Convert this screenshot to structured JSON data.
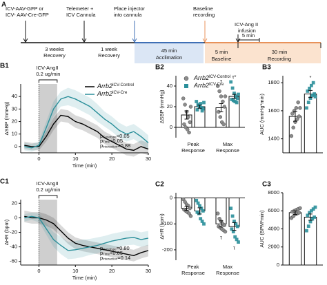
{
  "timeline": {
    "panel": "A",
    "labels": [
      [
        "ICV-AAV-GFP or",
        "ICV- AAV-Cre-GFP"
      ],
      [
        "Telemeter +",
        "ICV Cannula"
      ],
      [
        "Place injector",
        "into cannula"
      ],
      [
        "Baseline",
        "recording"
      ],
      [
        "ICV-Ang II",
        "infusion"
      ]
    ],
    "periods": [
      [
        "3 weeks",
        "Recovery"
      ],
      [
        "1 week",
        "Recovery"
      ],
      [
        "45 min",
        "Acclimation"
      ],
      [
        "5 min",
        "Baseline"
      ],
      [
        "30 min",
        "Recording"
      ]
    ],
    "infusion_period": "5 min"
  },
  "chart_data": [
    {
      "type": "line",
      "panel": "B1",
      "ylabel": "ΔSBP (mmHg)",
      "xlabel": "Time (min)",
      "legend": "upper right",
      "infusion_label": [
        "ICV-AngII",
        "0.2 ug/min"
      ],
      "shade": [
        0,
        5
      ],
      "xlim": [
        -5,
        30
      ],
      "xticks": [
        0,
        10,
        20,
        30
      ],
      "ylim": [
        -5,
        50
      ],
      "yticks": [
        0,
        10,
        20,
        30,
        40
      ],
      "x": [
        -4,
        -2,
        0,
        2,
        4,
        6,
        8,
        10,
        12,
        14,
        16,
        18,
        20,
        22,
        24,
        26,
        28,
        30
      ],
      "series": [
        {
          "name": "Arrb2",
          "name_sup": "ICV-Control",
          "color": "#000000",
          "values": [
            1,
            0,
            0,
            8,
            18,
            25,
            24,
            20,
            18,
            15,
            12,
            7,
            4,
            1,
            -2,
            -3,
            0,
            -2
          ],
          "errors": [
            3,
            3,
            3,
            4,
            5,
            5,
            5,
            5,
            5,
            5,
            5,
            5,
            5,
            5,
            5,
            5,
            5,
            5
          ]
        },
        {
          "name": "Arrb2",
          "name_sup": "ICV-Cre",
          "color": "#2a8f9a",
          "values": [
            0,
            -1,
            1,
            15,
            30,
            38,
            40,
            38,
            35,
            32,
            27,
            22,
            18,
            13,
            10,
            12,
            8,
            3
          ],
          "errors": [
            3,
            3,
            3,
            5,
            6,
            6,
            7,
            7,
            7,
            7,
            7,
            6,
            6,
            6,
            6,
            6,
            6,
            6
          ]
        }
      ],
      "stats": [
        {
          "symbol": "p",
          "subscript": "Genotype",
          "text": "<0.05"
        },
        {
          "symbol": "p",
          "subscript": "Time",
          "text": "<0.05"
        },
        {
          "symbol": "p",
          "subscript": "Interaction",
          "text": "=0.88"
        }
      ]
    },
    {
      "type": "bar",
      "panel": "B2",
      "ylabel": "ΔSBP (mmHg)",
      "legend": "upper left",
      "categories": [
        [
          "Peak",
          "Response"
        ],
        [
          "Max",
          "Response"
        ]
      ],
      "ylim": [
        -10,
        50
      ],
      "yticks": [
        0,
        20,
        40
      ],
      "series": [
        {
          "name": "Arrb2",
          "name_sup": "ICV-Control",
          "color": "#8c8c8c",
          "marker": "circle",
          "values": [
            12,
            19
          ],
          "errors": [
            4,
            4
          ],
          "points": [
            [
              28,
              22,
              15,
              10,
              5,
              3,
              0,
              -2,
              -5,
              20
            ],
            [
              40,
              35,
              30,
              25,
              20,
              15,
              10,
              5,
              3,
              30
            ]
          ]
        },
        {
          "name": "Arrb2",
          "name_sup": "ICV-Cre",
          "color": "#2a8f9a",
          "marker": "square",
          "values": [
            20,
            30
          ],
          "errors": [
            1.5,
            2
          ],
          "points": [
            [
              25,
              22,
              20,
              19,
              18,
              17,
              21,
              23,
              16,
              24
            ],
            [
              44,
              38,
              33,
              30,
              28,
              27,
              26,
              25,
              24,
              32
            ]
          ]
        }
      ],
      "annotations": [
        {
          "series": 0,
          "category": 1,
          "text": "τ"
        },
        {
          "series": 1,
          "category": 1,
          "text": "τ*"
        }
      ]
    },
    {
      "type": "bar",
      "panel": "B3",
      "ylabel": "AUC (mmHg*min)",
      "ylim": [
        1300,
        1850
      ],
      "yticks": [
        1400,
        1600,
        1800
      ],
      "series": [
        {
          "color": "#8c8c8c",
          "marker": "circle",
          "values": [
            1560
          ],
          "errors": [
            35
          ],
          "points": [
            [
              1420,
              1480,
              1520,
              1540,
              1560,
              1580,
              1600,
              1620,
              1660,
              1620
            ]
          ]
        },
        {
          "color": "#2a8f9a",
          "marker": "square",
          "values": [
            1720
          ],
          "errors": [
            25
          ],
          "points": [
            [
              1620,
              1660,
              1690,
              1710,
              1720,
              1740,
              1760,
              1780,
              1800,
              1700
            ]
          ]
        }
      ],
      "annotations": [
        {
          "series": 1,
          "category": 0,
          "text": "*"
        }
      ]
    },
    {
      "type": "line",
      "panel": "C1",
      "ylabel": "ΔHR (bpm)",
      "xlabel": "Time (min)",
      "infusion_label": [
        "ICV-AngII",
        "0.2 ug/min"
      ],
      "shade": [
        0,
        5
      ],
      "xlim": [
        -5,
        30
      ],
      "xticks": [
        0,
        10,
        20,
        30
      ],
      "ylim": [
        -65,
        25
      ],
      "yticks": [
        -60,
        -40,
        -20,
        0,
        20
      ],
      "x": [
        -4,
        -2,
        0,
        2,
        4,
        6,
        8,
        10,
        12,
        14,
        16,
        18,
        20,
        22,
        24,
        26,
        28,
        30
      ],
      "series": [
        {
          "color": "#000000",
          "values": [
            2,
            0,
            0,
            -3,
            -8,
            -18,
            -28,
            -35,
            -38,
            -40,
            -42,
            -44,
            -46,
            -48,
            -50,
            -52,
            -48,
            -45
          ],
          "errors": [
            8,
            8,
            8,
            8,
            8,
            8,
            8,
            8,
            8,
            8,
            8,
            8,
            8,
            8,
            8,
            8,
            8,
            8
          ]
        },
        {
          "color": "#2a8f9a",
          "values": [
            0,
            2,
            0,
            -15,
            -30,
            -38,
            -45,
            -44,
            -42,
            -40,
            -38,
            -35,
            -32,
            -30,
            -28,
            -27,
            -30,
            -28
          ],
          "errors": [
            5,
            5,
            6,
            8,
            10,
            12,
            12,
            12,
            12,
            11,
            11,
            10,
            10,
            10,
            10,
            10,
            10,
            10
          ]
        }
      ],
      "stats": [
        {
          "symbol": "p",
          "subscript": "Genotype",
          "text": "=0.80"
        },
        {
          "symbol": "p",
          "subscript": "Time",
          "text": "<0.05"
        },
        {
          "symbol": "p",
          "subscript": "Interaction",
          "text": "=0.14"
        }
      ]
    },
    {
      "type": "bar",
      "panel": "C2",
      "ylabel": "ΔHR (bpm)",
      "categories": [
        [
          "Peak",
          "Response"
        ],
        [
          "Max",
          "Response"
        ]
      ],
      "ylim": [
        -240,
        20
      ],
      "yticks": [
        -200,
        -100,
        0
      ],
      "series": [
        {
          "color": "#8c8c8c",
          "marker": "circle",
          "values": [
            -40,
            -100
          ],
          "errors": [
            8,
            12
          ],
          "points": [
            [
              -5,
              -15,
              -25,
              -30,
              -40,
              -45,
              -50,
              -55,
              -60,
              -70
            ],
            [
              -60,
              -80,
              -90,
              -100,
              -105,
              -110,
              -115,
              -120,
              -125,
              -130
            ]
          ]
        },
        {
          "color": "#2a8f9a",
          "marker": "square",
          "values": [
            -50,
            -110
          ],
          "errors": [
            12,
            15
          ],
          "points": [
            [
              -10,
              -20,
              -30,
              -40,
              -50,
              -55,
              -60,
              -80,
              -90,
              -100
            ],
            [
              -40,
              -70,
              -90,
              -100,
              -110,
              -120,
              -130,
              -150,
              -160,
              -170
            ]
          ]
        }
      ],
      "annotations": [
        {
          "series": 0,
          "category": 1,
          "text": "τ"
        },
        {
          "series": 1,
          "category": 1,
          "text": "τ"
        }
      ]
    },
    {
      "type": "bar",
      "panel": "C3",
      "ylabel": "AUC (BPM*min)",
      "ylim": [
        0,
        8000
      ],
      "yticks": [
        0,
        2000,
        4000,
        6000,
        8000
      ],
      "series": [
        {
          "color": "#8c8c8c",
          "marker": "circle",
          "values": [
            5800
          ],
          "errors": [
            200
          ],
          "points": [
            [
              5200,
              5400,
              5600,
              5700,
              5800,
              5900,
              6000,
              6100,
              6200,
              6300
            ]
          ]
        },
        {
          "color": "#2a8f9a",
          "marker": "square",
          "values": [
            5300
          ],
          "errors": [
            350
          ],
          "points": [
            [
              3800,
              4300,
              4800,
              5100,
              5300,
              5500,
              5800,
              6000,
              6200,
              6400
            ]
          ]
        }
      ]
    }
  ]
}
